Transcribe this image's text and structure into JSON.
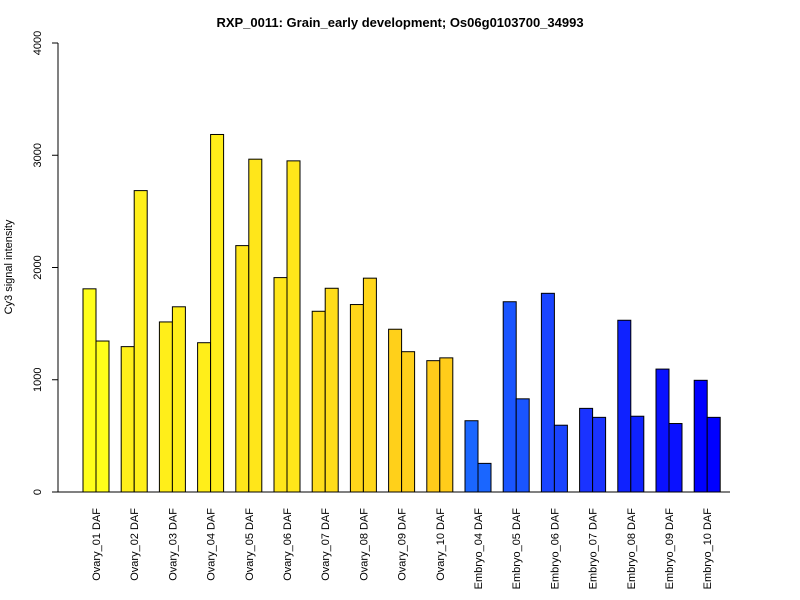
{
  "chart_data": {
    "type": "bar",
    "title": "RXP_0011: Grain_early development; Os06g0103700_34993",
    "ylabel": "Cy3 signal intensity",
    "xlabel": "",
    "ylim": [
      0,
      4000
    ],
    "yticks": [
      0,
      1000,
      2000,
      3000,
      4000
    ],
    "grid": false,
    "legend": "none",
    "categories": [
      "Ovary_01 DAF",
      "Ovary_02 DAF",
      "Ovary_03 DAF",
      "Ovary_04 DAF",
      "Ovary_05 DAF",
      "Ovary_06 DAF",
      "Ovary_07 DAF",
      "Ovary_08 DAF",
      "Ovary_09 DAF",
      "Ovary_10 DAF",
      "Embryo_04 DAF",
      "Embryo_05 DAF",
      "Embryo_06 DAF",
      "Embryo_07 DAF",
      "Embryo_08 DAF",
      "Embryo_09 DAF",
      "Embryo_10 DAF"
    ],
    "series": [
      {
        "values": [
          1810,
          1295,
          1515,
          1330,
          2195,
          1910,
          1610,
          1670,
          1450,
          1170,
          635,
          1695,
          1770,
          745,
          1530,
          1095,
          995
        ]
      },
      {
        "values": [
          1345,
          2685,
          1650,
          3185,
          2965,
          2950,
          1815,
          1905,
          1250,
          1195,
          255,
          830,
          595,
          665,
          675,
          610,
          665
        ]
      }
    ],
    "colors": [
      "#ffff1a",
      "#ffef1a",
      "#ffee1a",
      "#ffee1a",
      "#ffe61a",
      "#ffe61a",
      "#ffdd1a",
      "#ffd61a",
      "#ffd01a",
      "#ffcc1a",
      "#1a66ff",
      "#1a55ff",
      "#1a44ff",
      "#1a33ff",
      "#0f22ff",
      "#0a11ff",
      "#0000ff"
    ]
  }
}
